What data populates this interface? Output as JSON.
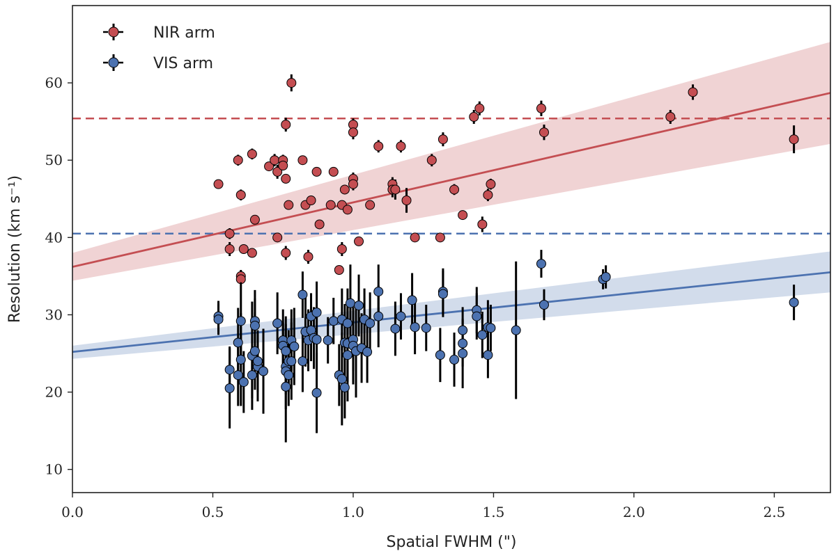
{
  "chart_data": {
    "type": "scatter",
    "xlabel": "Spatial FWHM (\")",
    "ylabel": "Resolution (km s⁻¹)",
    "xlim": [
      0.0,
      2.7
    ],
    "ylim": [
      7,
      70
    ],
    "xticks": [
      "0.0",
      "0.5",
      "1.0",
      "1.5",
      "2.0",
      "2.5"
    ],
    "yticks": [
      "10",
      "20",
      "30",
      "40",
      "50",
      "60"
    ],
    "grid": false,
    "legend_position": "top-left",
    "series": [
      {
        "name": "NIR arm",
        "color": "#c44e52",
        "points": [
          [
            0.52,
            46.9,
            0.6
          ],
          [
            0.56,
            40.5,
            0.7
          ],
          [
            0.56,
            38.5,
            0.9
          ],
          [
            0.59,
            50.0,
            0.7
          ],
          [
            0.6,
            45.5,
            0.7
          ],
          [
            0.6,
            35.0,
            0.8
          ],
          [
            0.6,
            34.6,
            0.6
          ],
          [
            0.61,
            38.5,
            0.6
          ],
          [
            0.64,
            50.8,
            0.7
          ],
          [
            0.64,
            38.0,
            0.5
          ],
          [
            0.65,
            42.3,
            0.6
          ],
          [
            0.7,
            49.2,
            0.6
          ],
          [
            0.72,
            50.0,
            0.8
          ],
          [
            0.73,
            48.5,
            0.9
          ],
          [
            0.73,
            40.0,
            0.6
          ],
          [
            0.75,
            50.0,
            0.7
          ],
          [
            0.75,
            49.3,
            0.6
          ],
          [
            0.76,
            54.6,
            0.9
          ],
          [
            0.76,
            47.6,
            0.6
          ],
          [
            0.76,
            38.0,
            0.9
          ],
          [
            0.77,
            44.2,
            0.6
          ],
          [
            0.78,
            60.0,
            1.1
          ],
          [
            0.82,
            50.0,
            0.6
          ],
          [
            0.83,
            44.2,
            0.6
          ],
          [
            0.84,
            37.5,
            0.9
          ],
          [
            0.85,
            44.8,
            0.6
          ],
          [
            0.87,
            48.5,
            0.6
          ],
          [
            0.88,
            41.7,
            0.5
          ],
          [
            0.92,
            44.2,
            0.6
          ],
          [
            0.93,
            48.5,
            0.6
          ],
          [
            0.95,
            35.8,
            0.5
          ],
          [
            0.96,
            38.5,
            0.9
          ],
          [
            0.96,
            44.2,
            0.6
          ],
          [
            0.97,
            46.2,
            0.6
          ],
          [
            0.98,
            43.6,
            0.6
          ],
          [
            1.0,
            54.6,
            0.8
          ],
          [
            1.0,
            53.6,
            0.9
          ],
          [
            1.0,
            47.6,
            0.8
          ],
          [
            1.0,
            46.9,
            0.8
          ],
          [
            1.02,
            39.5,
            0.5
          ],
          [
            1.06,
            44.2,
            0.6
          ],
          [
            1.09,
            51.8,
            0.8
          ],
          [
            1.14,
            46.9,
            0.9
          ],
          [
            1.14,
            46.2,
            1.0
          ],
          [
            1.15,
            46.2,
            1.3
          ],
          [
            1.17,
            51.8,
            0.8
          ],
          [
            1.19,
            44.8,
            1.6
          ],
          [
            1.22,
            40.0,
            0.5
          ],
          [
            1.28,
            50.0,
            0.8
          ],
          [
            1.31,
            40.0,
            0.5
          ],
          [
            1.32,
            52.7,
            0.9
          ],
          [
            1.36,
            46.2,
            0.7
          ],
          [
            1.39,
            42.9,
            0.6
          ],
          [
            1.43,
            55.6,
            0.9
          ],
          [
            1.45,
            56.7,
            0.9
          ],
          [
            1.46,
            41.7,
            1.0
          ],
          [
            1.48,
            45.5,
            0.8
          ],
          [
            1.49,
            46.9,
            0.7
          ],
          [
            1.67,
            56.7,
            1.0
          ],
          [
            1.68,
            53.6,
            1.0
          ],
          [
            2.13,
            55.6,
            0.9
          ],
          [
            2.21,
            58.8,
            1.0
          ],
          [
            2.57,
            52.7,
            1.8
          ]
        ],
        "fit": {
          "x": [
            0.0,
            2.7
          ],
          "y": [
            36.2,
            58.7
          ]
        },
        "band_upper": [
          38.0,
          65.3
        ],
        "band_lower": [
          34.4,
          52.1
        ],
        "hline": 55.4
      },
      {
        "name": "VIS arm",
        "color": "#4c72b0",
        "points": [
          [
            0.52,
            29.8,
            2.0
          ],
          [
            0.52,
            29.4,
            2.0
          ],
          [
            0.56,
            22.9,
            3.0
          ],
          [
            0.56,
            20.5,
            5.2
          ],
          [
            0.59,
            26.4,
            4.5
          ],
          [
            0.59,
            22.2,
            4.0
          ],
          [
            0.6,
            29.2,
            5.0
          ],
          [
            0.6,
            24.2,
            6.0
          ],
          [
            0.61,
            21.3,
            4.0
          ],
          [
            0.64,
            24.7,
            7.0
          ],
          [
            0.64,
            22.2,
            3.0
          ],
          [
            0.65,
            29.2,
            4.0
          ],
          [
            0.65,
            28.6,
            3.5
          ],
          [
            0.65,
            25.3,
            5.0
          ],
          [
            0.66,
            23.3,
            4.5
          ],
          [
            0.66,
            24.0,
            4.0
          ],
          [
            0.68,
            22.7,
            5.5
          ],
          [
            0.73,
            28.9,
            4.0
          ],
          [
            0.75,
            26.7,
            4.0
          ],
          [
            0.75,
            26.0,
            3.0
          ],
          [
            0.76,
            25.3,
            4.5
          ],
          [
            0.76,
            23.3,
            5.5
          ],
          [
            0.76,
            22.7,
            3.0
          ],
          [
            0.76,
            20.7,
            7.2
          ],
          [
            0.77,
            22.2,
            4.0
          ],
          [
            0.77,
            24.0,
            4.0
          ],
          [
            0.78,
            26.7,
            4.0
          ],
          [
            0.78,
            24.0,
            5.0
          ],
          [
            0.79,
            25.9,
            5.0
          ],
          [
            0.82,
            32.6,
            3.0
          ],
          [
            0.82,
            24.0,
            4.0
          ],
          [
            0.83,
            27.8,
            4.5
          ],
          [
            0.84,
            26.7,
            4.0
          ],
          [
            0.85,
            28.0,
            4.0
          ],
          [
            0.85,
            29.8,
            3.0
          ],
          [
            0.86,
            27.0,
            4.0
          ],
          [
            0.87,
            19.9,
            5.2
          ],
          [
            0.87,
            30.3,
            4.0
          ],
          [
            0.87,
            26.8,
            4.0
          ],
          [
            0.91,
            26.7,
            3.0
          ],
          [
            0.93,
            29.2,
            3.0
          ],
          [
            0.95,
            22.2,
            4.0
          ],
          [
            0.96,
            29.4,
            4.0
          ],
          [
            0.96,
            21.7,
            6.0
          ],
          [
            0.97,
            26.4,
            5.0
          ],
          [
            0.97,
            20.6,
            4.0
          ],
          [
            0.98,
            28.9,
            4.5
          ],
          [
            0.98,
            24.8,
            6.0
          ],
          [
            0.98,
            26.3,
            5.0
          ],
          [
            0.99,
            31.5,
            5.0
          ],
          [
            1.0,
            26.8,
            4.0
          ],
          [
            1.0,
            26.0,
            5.0
          ],
          [
            1.01,
            25.3,
            6.0
          ],
          [
            1.02,
            31.2,
            4.0
          ],
          [
            1.03,
            25.7,
            4.5
          ],
          [
            1.04,
            29.4,
            4.0
          ],
          [
            1.05,
            25.2,
            4.0
          ],
          [
            1.06,
            28.9,
            4.0
          ],
          [
            1.09,
            33.0,
            3.5
          ],
          [
            1.09,
            29.8,
            4.0
          ],
          [
            1.15,
            28.2,
            3.5
          ],
          [
            1.17,
            29.8,
            3.0
          ],
          [
            1.21,
            31.9,
            3.5
          ],
          [
            1.22,
            28.4,
            3.5
          ],
          [
            1.26,
            28.3,
            3.0
          ],
          [
            1.31,
            24.8,
            3.5
          ],
          [
            1.32,
            33.0,
            3.0
          ],
          [
            1.32,
            32.7,
            3.0
          ],
          [
            1.36,
            24.2,
            3.5
          ],
          [
            1.39,
            28.0,
            3.0
          ],
          [
            1.39,
            26.3,
            3.0
          ],
          [
            1.39,
            25.0,
            4.5
          ],
          [
            1.44,
            30.6,
            3.0
          ],
          [
            1.44,
            29.8,
            3.0
          ],
          [
            1.46,
            27.4,
            3.0
          ],
          [
            1.48,
            24.8,
            3.0
          ],
          [
            1.48,
            28.4,
            3.5
          ],
          [
            1.49,
            28.3,
            3.0
          ],
          [
            1.58,
            28.0,
            8.9
          ],
          [
            1.67,
            36.6,
            1.8
          ],
          [
            1.68,
            31.3,
            2.0
          ],
          [
            1.89,
            34.6,
            1.3
          ],
          [
            1.9,
            34.9,
            1.5
          ],
          [
            2.57,
            31.6,
            2.3
          ]
        ],
        "fit": {
          "x": [
            0.0,
            2.7
          ],
          "y": [
            25.2,
            35.5
          ]
        },
        "band_upper": [
          26.0,
          38.2
        ],
        "band_lower": [
          24.3,
          32.9
        ],
        "hline": 40.5
      }
    ]
  }
}
